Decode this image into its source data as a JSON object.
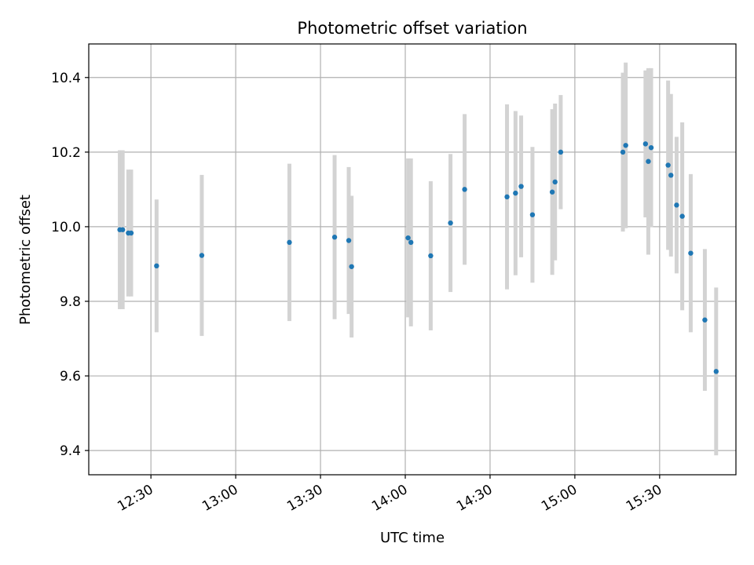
{
  "chart_data": {
    "type": "scatter",
    "title": "Photometric offset variation",
    "xlabel": "UTC time",
    "ylabel": "Photometric offset",
    "grid": true,
    "xlim": [
      "12:08",
      "15:57"
    ],
    "ylim": [
      9.335,
      10.49
    ],
    "x_ticks": [
      "12:30",
      "13:00",
      "13:30",
      "14:00",
      "14:30",
      "15:00",
      "15:30"
    ],
    "y_ticks": [
      9.4,
      9.6,
      9.8,
      10.0,
      10.2,
      10.4
    ],
    "y_tick_labels": [
      "9.4",
      "9.6",
      "9.8",
      "10.0",
      "10.2",
      "10.4"
    ],
    "colors": {
      "points": "#1f77b4",
      "errorbars": "#d3d3d3",
      "grid": "#b0b0b0"
    },
    "series": [
      {
        "x": [
          "12:19",
          "12:20",
          "12:22",
          "12:23",
          "12:32",
          "12:48",
          "13:19",
          "13:35",
          "13:40",
          "13:41",
          "14:01",
          "14:02",
          "14:09",
          "14:16",
          "14:21",
          "14:36",
          "14:39",
          "14:41",
          "14:45",
          "14:52",
          "14:53",
          "14:55",
          "15:17",
          "15:18",
          "15:25",
          "15:26",
          "15:27",
          "15:33",
          "15:34",
          "15:36",
          "15:38",
          "15:41",
          "15:46",
          "15:50"
        ],
        "y": [
          9.992,
          9.992,
          9.983,
          9.983,
          9.895,
          9.923,
          9.958,
          9.972,
          9.963,
          9.893,
          9.97,
          9.958,
          9.922,
          10.01,
          10.1,
          10.08,
          10.09,
          10.108,
          10.032,
          10.093,
          10.12,
          10.2,
          10.2,
          10.218,
          10.222,
          10.175,
          10.212,
          10.165,
          10.138,
          10.058,
          10.028,
          9.929,
          9.75,
          9.612
        ],
        "yerr": [
          0.213,
          0.213,
          0.17,
          0.17,
          0.178,
          0.216,
          0.211,
          0.22,
          0.197,
          0.19,
          0.213,
          0.225,
          0.2,
          0.185,
          0.202,
          0.248,
          0.22,
          0.19,
          0.182,
          0.222,
          0.21,
          0.153,
          0.213,
          0.222,
          0.197,
          0.25,
          0.213,
          0.227,
          0.218,
          0.183,
          0.252,
          0.212,
          0.19,
          0.225
        ]
      }
    ]
  }
}
